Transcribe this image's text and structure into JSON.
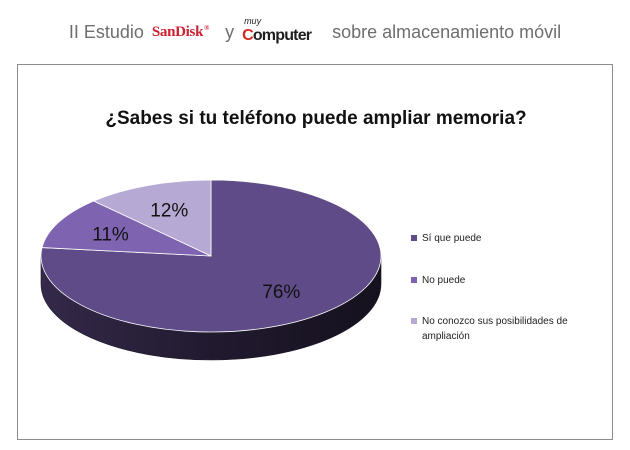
{
  "header": {
    "prefix": "II Estudio",
    "conjunction": "y",
    "suffix": "sobre almacenamiento móvil",
    "logo_sandisk": "SanDisk",
    "logo_sandisk_mark": "®",
    "logo_computer_small": "muy",
    "logo_computer_first": "C",
    "logo_computer_rest": "omputer"
  },
  "chart_data": {
    "type": "pie",
    "title": "¿Sabes si tu teléfono puede ampliar memoria?",
    "style": "3d",
    "legend_position": "right",
    "slices": [
      {
        "label": "Sí que puede",
        "value": 76,
        "display": "76%",
        "color": "#5f4b87"
      },
      {
        "label": "No puede",
        "value": 11,
        "display": "11%",
        "color": "#7e64b0"
      },
      {
        "label": "No conozco sus posibilidades de ampliación",
        "value": 12,
        "display": "12%",
        "color": "#b6a9d4"
      }
    ]
  }
}
